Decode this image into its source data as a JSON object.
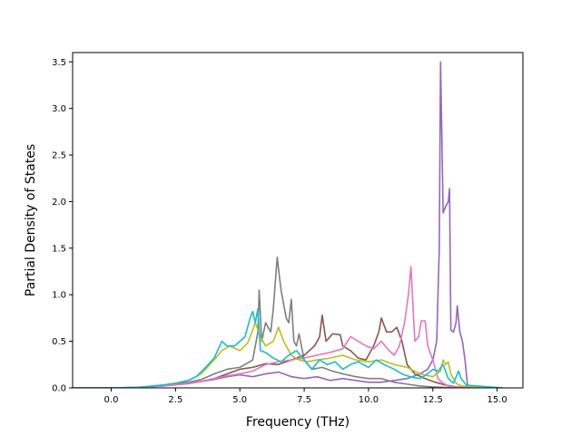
{
  "chart_data": {
    "type": "line",
    "title": "",
    "xlabel": "Frequency (THz)",
    "ylabel": "Partial Density of States",
    "xlim": [
      -1.5,
      16.0
    ],
    "ylim": [
      0.0,
      3.6
    ],
    "xticks": [
      "0.0",
      "2.5",
      "5.0",
      "7.5",
      "10.0",
      "12.5",
      "15.0"
    ],
    "yticks": [
      "0.0",
      "0.5",
      "1.0",
      "1.5",
      "2.0",
      "2.5",
      "3.0",
      "3.5"
    ],
    "grid": false,
    "legend": "none",
    "series": [
      {
        "color": "#9467bd",
        "points": [
          [
            -1.5,
            0
          ],
          [
            0,
            0
          ],
          [
            1,
            0.005
          ],
          [
            2,
            0.02
          ],
          [
            3,
            0.045
          ],
          [
            4,
            0.09
          ],
          [
            4.5,
            0.12
          ],
          [
            5,
            0.14
          ],
          [
            5.5,
            0.12
          ],
          [
            6,
            0.15
          ],
          [
            6.5,
            0.17
          ],
          [
            7,
            0.12
          ],
          [
            7.5,
            0.1
          ],
          [
            8,
            0.12
          ],
          [
            8.5,
            0.08
          ],
          [
            9,
            0.1
          ],
          [
            9.5,
            0.08
          ],
          [
            10,
            0.06
          ],
          [
            10.5,
            0.06
          ],
          [
            11,
            0.08
          ],
          [
            11.5,
            0.1
          ],
          [
            12,
            0.15
          ],
          [
            12.3,
            0.2
          ],
          [
            12.5,
            0.3
          ],
          [
            12.65,
            0.5
          ],
          [
            12.75,
            1.5
          ],
          [
            12.8,
            3.5
          ],
          [
            12.9,
            1.88
          ],
          [
            13.0,
            1.95
          ],
          [
            13.1,
            2.0
          ],
          [
            13.15,
            2.14
          ],
          [
            13.2,
            0.62
          ],
          [
            13.3,
            0.6
          ],
          [
            13.4,
            0.7
          ],
          [
            13.45,
            0.88
          ],
          [
            13.55,
            0.6
          ],
          [
            13.65,
            0.5
          ],
          [
            13.75,
            0.3
          ],
          [
            13.85,
            0.02
          ],
          [
            15.2,
            0
          ]
        ]
      },
      {
        "color": "#7f7f7f",
        "points": [
          [
            -1.5,
            0
          ],
          [
            0,
            0
          ],
          [
            1,
            0.005
          ],
          [
            2,
            0.03
          ],
          [
            3,
            0.06
          ],
          [
            3.5,
            0.09
          ],
          [
            4,
            0.15
          ],
          [
            4.5,
            0.2
          ],
          [
            5,
            0.22
          ],
          [
            5.5,
            0.3
          ],
          [
            5.7,
            0.6
          ],
          [
            5.75,
            1.05
          ],
          [
            5.85,
            0.5
          ],
          [
            6,
            0.7
          ],
          [
            6.2,
            0.6
          ],
          [
            6.3,
            0.85
          ],
          [
            6.45,
            1.4
          ],
          [
            6.6,
            1.05
          ],
          [
            6.8,
            0.75
          ],
          [
            6.9,
            0.7
          ],
          [
            7.0,
            0.95
          ],
          [
            7.1,
            0.5
          ],
          [
            7.2,
            0.45
          ],
          [
            7.3,
            0.58
          ],
          [
            7.5,
            0.3
          ],
          [
            7.8,
            0.2
          ],
          [
            8.2,
            0.22
          ],
          [
            8.6,
            0.18
          ],
          [
            9,
            0.15
          ],
          [
            9.5,
            0.12
          ],
          [
            10,
            0.1
          ],
          [
            10.5,
            0.1
          ],
          [
            11,
            0.06
          ],
          [
            11.5,
            0.04
          ],
          [
            12,
            0.02
          ],
          [
            12.5,
            0.01
          ],
          [
            13,
            0.005
          ],
          [
            15.2,
            0
          ]
        ]
      },
      {
        "color": "#8c564b",
        "points": [
          [
            -1.5,
            0
          ],
          [
            0,
            0
          ],
          [
            1,
            0.005
          ],
          [
            2,
            0.025
          ],
          [
            3,
            0.05
          ],
          [
            3.5,
            0.07
          ],
          [
            4,
            0.1
          ],
          [
            4.5,
            0.15
          ],
          [
            5,
            0.2
          ],
          [
            5.5,
            0.22
          ],
          [
            6,
            0.26
          ],
          [
            6.5,
            0.25
          ],
          [
            7,
            0.3
          ],
          [
            7.5,
            0.35
          ],
          [
            7.9,
            0.45
          ],
          [
            8.1,
            0.55
          ],
          [
            8.2,
            0.78
          ],
          [
            8.35,
            0.5
          ],
          [
            8.6,
            0.58
          ],
          [
            8.9,
            0.57
          ],
          [
            9.0,
            0.45
          ],
          [
            9.3,
            0.4
          ],
          [
            9.6,
            0.32
          ],
          [
            9.9,
            0.3
          ],
          [
            10.2,
            0.45
          ],
          [
            10.4,
            0.6
          ],
          [
            10.5,
            0.75
          ],
          [
            10.7,
            0.6
          ],
          [
            10.9,
            0.6
          ],
          [
            11.1,
            0.65
          ],
          [
            11.3,
            0.5
          ],
          [
            11.5,
            0.25
          ],
          [
            11.8,
            0.15
          ],
          [
            12.2,
            0.1
          ],
          [
            12.6,
            0.06
          ],
          [
            13,
            0.03
          ],
          [
            13.4,
            0.01
          ],
          [
            15.2,
            0
          ]
        ]
      },
      {
        "color": "#e377c2",
        "points": [
          [
            -1.5,
            0
          ],
          [
            0,
            0
          ],
          [
            1,
            0.005
          ],
          [
            2,
            0.02
          ],
          [
            3,
            0.05
          ],
          [
            3.5,
            0.07
          ],
          [
            4,
            0.1
          ],
          [
            4.5,
            0.13
          ],
          [
            5,
            0.15
          ],
          [
            5.5,
            0.18
          ],
          [
            6,
            0.25
          ],
          [
            6.5,
            0.28
          ],
          [
            7,
            0.3
          ],
          [
            7.5,
            0.32
          ],
          [
            8,
            0.35
          ],
          [
            8.5,
            0.38
          ],
          [
            9,
            0.42
          ],
          [
            9.3,
            0.55
          ],
          [
            9.6,
            0.5
          ],
          [
            9.9,
            0.45
          ],
          [
            10.2,
            0.42
          ],
          [
            10.5,
            0.5
          ],
          [
            10.8,
            0.4
          ],
          [
            11.0,
            0.35
          ],
          [
            11.2,
            0.45
          ],
          [
            11.4,
            0.7
          ],
          [
            11.55,
            1.0
          ],
          [
            11.65,
            1.3
          ],
          [
            11.8,
            0.5
          ],
          [
            11.95,
            0.55
          ],
          [
            12.05,
            0.72
          ],
          [
            12.2,
            0.72
          ],
          [
            12.3,
            0.45
          ],
          [
            12.5,
            0.3
          ],
          [
            12.7,
            0.1
          ],
          [
            12.9,
            0.05
          ],
          [
            13.1,
            0.02
          ],
          [
            13.3,
            0.01
          ],
          [
            15.2,
            0
          ]
        ]
      },
      {
        "color": "#bcbd22",
        "points": [
          [
            -1.5,
            0
          ],
          [
            0,
            0
          ],
          [
            1,
            0.005
          ],
          [
            2,
            0.03
          ],
          [
            2.5,
            0.05
          ],
          [
            3,
            0.08
          ],
          [
            3.5,
            0.15
          ],
          [
            4,
            0.3
          ],
          [
            4.3,
            0.4
          ],
          [
            4.6,
            0.45
          ],
          [
            5,
            0.4
          ],
          [
            5.3,
            0.48
          ],
          [
            5.5,
            0.62
          ],
          [
            5.6,
            0.7
          ],
          [
            5.8,
            0.55
          ],
          [
            6.0,
            0.45
          ],
          [
            6.3,
            0.5
          ],
          [
            6.5,
            0.65
          ],
          [
            6.7,
            0.5
          ],
          [
            7.0,
            0.35
          ],
          [
            7.3,
            0.3
          ],
          [
            7.6,
            0.28
          ],
          [
            8,
            0.3
          ],
          [
            8.5,
            0.32
          ],
          [
            9,
            0.35
          ],
          [
            9.5,
            0.3
          ],
          [
            10,
            0.28
          ],
          [
            10.5,
            0.3
          ],
          [
            11,
            0.25
          ],
          [
            11.5,
            0.22
          ],
          [
            12,
            0.15
          ],
          [
            12.5,
            0.12
          ],
          [
            12.8,
            0.18
          ],
          [
            12.9,
            0.3
          ],
          [
            13.0,
            0.25
          ],
          [
            13.1,
            0.28
          ],
          [
            13.2,
            0.15
          ],
          [
            13.4,
            0.05
          ],
          [
            13.6,
            0.02
          ],
          [
            15.2,
            0
          ]
        ]
      },
      {
        "color": "#17becf",
        "points": [
          [
            -1.5,
            0
          ],
          [
            0,
            0
          ],
          [
            1,
            0.005
          ],
          [
            2,
            0.03
          ],
          [
            2.5,
            0.05
          ],
          [
            3,
            0.08
          ],
          [
            3.3,
            0.12
          ],
          [
            3.6,
            0.2
          ],
          [
            4,
            0.32
          ],
          [
            4.3,
            0.5
          ],
          [
            4.5,
            0.45
          ],
          [
            4.8,
            0.45
          ],
          [
            5.0,
            0.5
          ],
          [
            5.2,
            0.55
          ],
          [
            5.4,
            0.75
          ],
          [
            5.5,
            0.82
          ],
          [
            5.6,
            0.7
          ],
          [
            5.7,
            0.85
          ],
          [
            5.8,
            0.4
          ],
          [
            6.0,
            0.38
          ],
          [
            6.3,
            0.32
          ],
          [
            6.6,
            0.28
          ],
          [
            6.9,
            0.35
          ],
          [
            7.2,
            0.4
          ],
          [
            7.5,
            0.3
          ],
          [
            7.8,
            0.2
          ],
          [
            8.1,
            0.3
          ],
          [
            8.4,
            0.25
          ],
          [
            8.7,
            0.28
          ],
          [
            9.0,
            0.2
          ],
          [
            9.3,
            0.25
          ],
          [
            9.6,
            0.28
          ],
          [
            10,
            0.22
          ],
          [
            10.3,
            0.3
          ],
          [
            10.6,
            0.25
          ],
          [
            11,
            0.2
          ],
          [
            11.3,
            0.15
          ],
          [
            11.6,
            0.12
          ],
          [
            12.0,
            0.1
          ],
          [
            12.3,
            0.15
          ],
          [
            12.5,
            0.2
          ],
          [
            12.7,
            0.18
          ],
          [
            12.9,
            0.25
          ],
          [
            13.1,
            0.1
          ],
          [
            13.3,
            0.05
          ],
          [
            13.5,
            0.18
          ],
          [
            13.6,
            0.1
          ],
          [
            13.8,
            0.03
          ],
          [
            15.2,
            0
          ]
        ]
      }
    ]
  }
}
